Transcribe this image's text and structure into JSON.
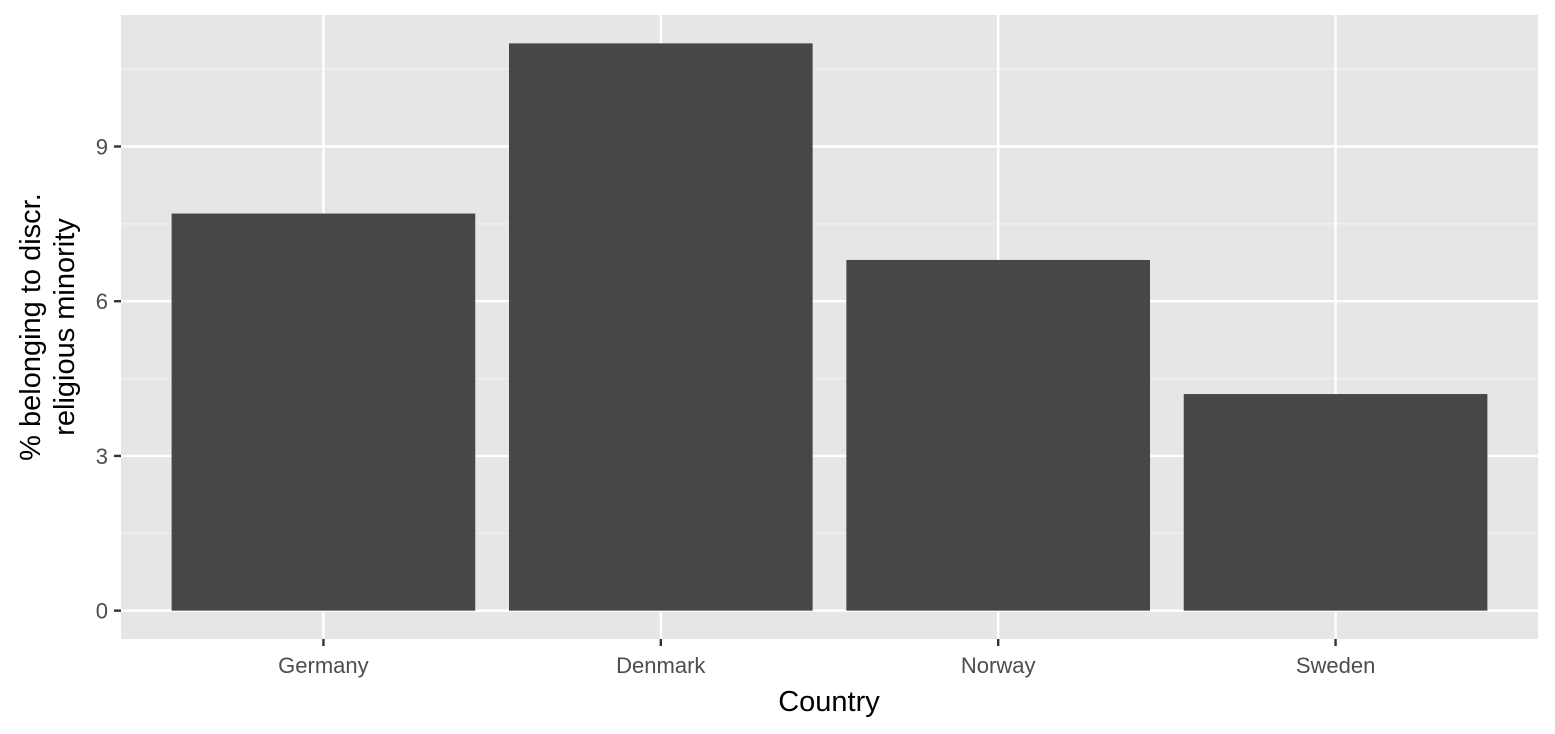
{
  "chart_data": {
    "type": "bar",
    "categories": [
      "Germany",
      "Denmark",
      "Norway",
      "Sweden"
    ],
    "values": [
      7.7,
      11.0,
      6.8,
      4.2
    ],
    "xlabel": "Country",
    "ylabel_lines": [
      "% belonging to discr.",
      "religious minority"
    ],
    "ylim": [
      -0.55,
      11.55
    ],
    "yticks": [
      0,
      3,
      6,
      9
    ],
    "ytick_labels": [
      "0",
      "3",
      "6",
      "9"
    ],
    "grid": true,
    "legend": "none",
    "colors": {
      "bar": "#474747",
      "panel": "#e6e6e6",
      "grid_major": "#ffffff",
      "grid_minor": "#f1f1f1",
      "tick": "#333333"
    }
  }
}
